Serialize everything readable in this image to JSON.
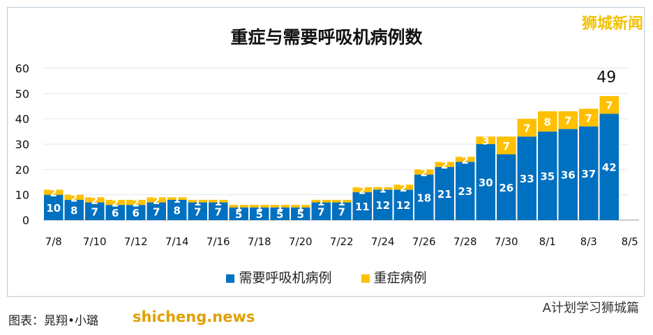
{
  "watermark": "狮城新闻",
  "credit": "图表：晁翔•小璐",
  "site": "shicheng.news",
  "wechat": "A计划学习狮城篇",
  "chart_data": {
    "type": "bar",
    "stacked": true,
    "title": "重症与需要呼吸机病例数",
    "categories": [
      "7/8",
      "7/9",
      "7/10",
      "7/11",
      "7/12",
      "7/13",
      "7/14",
      "7/15",
      "7/16",
      "7/17",
      "7/18",
      "7/19",
      "7/20",
      "7/21",
      "7/22",
      "7/23",
      "7/24",
      "7/25",
      "7/26",
      "7/27",
      "7/28",
      "7/29",
      "7/30",
      "7/31",
      "8/1",
      "8/2",
      "8/3",
      "8/4"
    ],
    "x_tick_labels": [
      "7/8",
      "7/10",
      "7/12",
      "7/14",
      "7/16",
      "7/18",
      "7/20",
      "7/22",
      "7/24",
      "7/26",
      "7/28",
      "7/30",
      "8/1",
      "8/3",
      "8/5"
    ],
    "series": [
      {
        "name": "需要呼吸机病例",
        "color": "#0070c0",
        "values": [
          10,
          8,
          7,
          6,
          6,
          7,
          8,
          7,
          7,
          5,
          5,
          5,
          5,
          7,
          7,
          11,
          12,
          12,
          18,
          21,
          23,
          30,
          26,
          33,
          35,
          36,
          37,
          42
        ]
      },
      {
        "name": "重症病例",
        "color": "#ffc000",
        "values": [
          2,
          2,
          2,
          2,
          2,
          2,
          1,
          1,
          1,
          1,
          1,
          1,
          1,
          1,
          1,
          2,
          1,
          2,
          2,
          2,
          2,
          3,
          7,
          7,
          8,
          7,
          7,
          7
        ]
      }
    ],
    "ylim": [
      0,
      60
    ],
    "yticks": [
      0,
      10,
      20,
      30,
      40,
      50,
      60
    ],
    "annotation": "49",
    "legend": "bottom"
  }
}
